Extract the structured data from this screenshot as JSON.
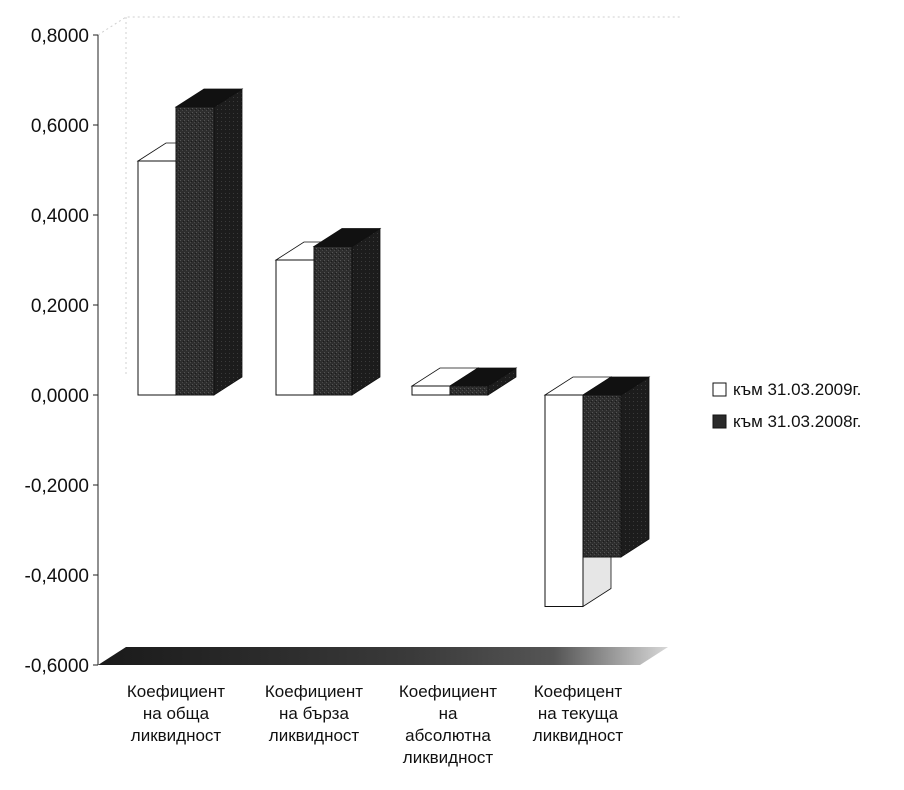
{
  "chart_data": {
    "type": "bar",
    "categories": [
      [
        "Коефициент",
        "на обща",
        "ликвидност"
      ],
      [
        "Коефициент",
        "на бърза",
        "ликвидност"
      ],
      [
        "Коефициент",
        "на",
        "абсолютна",
        "ликвидност"
      ],
      [
        "Коефицент",
        "на текуща",
        "ликвидност"
      ]
    ],
    "series": [
      {
        "name": "към 31.03.2009г.",
        "values": [
          0.52,
          0.3,
          0.02,
          -0.47
        ],
        "color": "#ffffff"
      },
      {
        "name": "към 31.03.2008г.",
        "values": [
          0.64,
          0.33,
          0.02,
          -0.36
        ],
        "color": "#2a2a2a"
      }
    ],
    "y_ticks": [
      "0,8000",
      "0,6000",
      "0,4000",
      "0,2000",
      "0,0000",
      "-0,2000",
      "-0,4000",
      "-0,6000"
    ],
    "ylim": [
      -0.6,
      0.8
    ],
    "legend_position": "right",
    "grid": false,
    "three_d": true
  }
}
